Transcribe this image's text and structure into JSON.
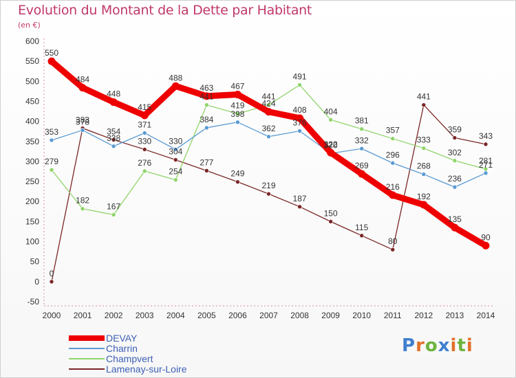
{
  "title": "Evolution du Montant de la Dette par Habitant",
  "subtitle": "(en €)",
  "logo": {
    "letters": [
      {
        "ch": "P",
        "color": "#3f7fd0"
      },
      {
        "ch": "r",
        "color": "#e2702a"
      },
      {
        "ch": "o",
        "color": "#6db33f"
      },
      {
        "ch": "x",
        "color": "#3f7fd0"
      },
      {
        "ch": "i",
        "color": "#e2702a"
      },
      {
        "ch": "t",
        "color": "#6db33f"
      },
      {
        "ch": "i",
        "color": "#e2702a"
      }
    ]
  },
  "chart_data": {
    "type": "line",
    "x": [
      "2000",
      "2001",
      "2002",
      "2003",
      "2004",
      "2005",
      "2006",
      "2007",
      "2008",
      "2009",
      "2010",
      "2011",
      "2012",
      "2013",
      "2014"
    ],
    "ylim": [
      -50,
      600
    ],
    "yticks": [
      -50,
      0,
      50,
      100,
      150,
      200,
      250,
      300,
      350,
      400,
      450,
      500,
      550,
      600
    ],
    "grid": false,
    "legend_position": "bottom-left",
    "series": [
      {
        "name": "DEVAY",
        "color": "#ee0000",
        "emphasis": true,
        "values": [
          550,
          484,
          448,
          415,
          488,
          463,
          467,
          424,
          408,
          322,
          269,
          216,
          192,
          135,
          90
        ],
        "labels": [
          "550",
          "484",
          "448",
          "415",
          "488",
          "463",
          "467",
          "424",
          "408",
          "322",
          "269",
          "216",
          "192",
          "135",
          "90"
        ]
      },
      {
        "name": "Charrin",
        "color": "#5a9ad2",
        "emphasis": false,
        "values": [
          353,
          378,
          338,
          371,
          330,
          384,
          398,
          362,
          376,
          320,
          332,
          296,
          268,
          236,
          271
        ],
        "labels": [
          "353",
          "378",
          "338",
          "371",
          "330",
          "384",
          "398",
          "362",
          "376",
          "320",
          "332",
          "296",
          "268",
          "236",
          "271"
        ]
      },
      {
        "name": "Champvert",
        "color": "#8fd46a",
        "emphasis": false,
        "values": [
          279,
          182,
          167,
          276,
          254,
          441,
          419,
          441,
          491,
          404,
          381,
          357,
          333,
          302,
          281
        ],
        "labels": [
          "279",
          "182",
          "167",
          "276",
          "254",
          "441",
          "419",
          "441",
          "491",
          "404",
          "381",
          "357",
          "333",
          "302",
          "281"
        ]
      },
      {
        "name": "Lamenay-sur-Loire",
        "color": "#7a2626",
        "emphasis": false,
        "values": [
          0,
          383,
          354,
          330,
          304,
          277,
          249,
          219,
          187,
          150,
          115,
          80,
          441,
          359,
          343
        ],
        "labels": [
          "0",
          "383",
          "354",
          "330",
          "304",
          "277",
          "249",
          "219",
          "187",
          "150",
          "115",
          "80",
          "441",
          "359",
          "343"
        ]
      }
    ]
  }
}
